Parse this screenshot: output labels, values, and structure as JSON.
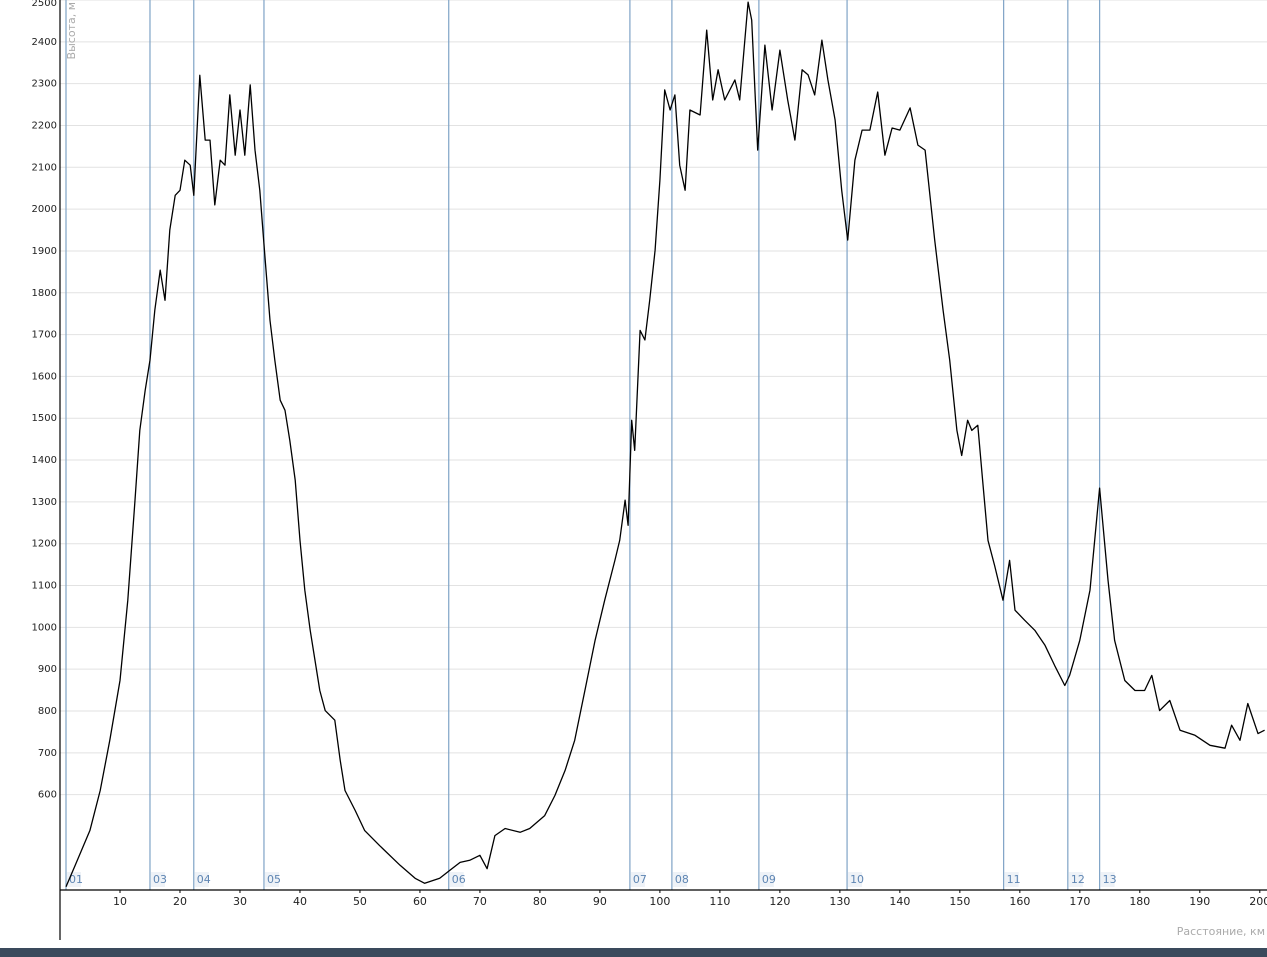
{
  "chart_data": {
    "type": "line",
    "y_label": "Высота, м",
    "x_label": "Расстояние, км",
    "xlim": [
      0,
      201.2
    ],
    "ylim": [
      372,
      2500
    ],
    "xticks": [
      10,
      20,
      30,
      40,
      50,
      60,
      70,
      80,
      90,
      100,
      110,
      120,
      130,
      140,
      150,
      160,
      170,
      180,
      190,
      200
    ],
    "yticks": [
      600,
      700,
      800,
      900,
      1000,
      1100,
      1200,
      1300,
      1400,
      1500,
      1600,
      1700,
      1800,
      1900,
      2000,
      2100,
      2200,
      2300,
      2400,
      2500
    ],
    "grid": true,
    "markers": [
      {
        "label": "01",
        "x": 1
      },
      {
        "label": "03",
        "x": 15
      },
      {
        "label": "04",
        "x": 22.3
      },
      {
        "label": "05",
        "x": 34
      },
      {
        "label": "06",
        "x": 64.8
      },
      {
        "label": "07",
        "x": 95
      },
      {
        "label": "08",
        "x": 102
      },
      {
        "label": "09",
        "x": 116.5
      },
      {
        "label": "10",
        "x": 131.2
      },
      {
        "label": "11",
        "x": 157.3
      },
      {
        "label": "12",
        "x": 168
      },
      {
        "label": "13",
        "x": 173.3
      }
    ],
    "x": [
      1,
      2.5,
      5,
      6.7,
      8.3,
      10,
      11.3,
      12.5,
      13.3,
      14.2,
      15,
      15.8,
      16.7,
      17.5,
      18.3,
      19.2,
      20,
      20.8,
      21.7,
      22.3,
      23.3,
      24.2,
      25,
      25.8,
      26.7,
      27.5,
      28.3,
      29.2,
      30,
      30.8,
      31.7,
      32.5,
      33.3,
      34.2,
      35,
      35.8,
      36.7,
      37.5,
      38.3,
      39.2,
      40,
      40.8,
      41.7,
      42.5,
      43.3,
      44.2,
      45.8,
      46.7,
      47.5,
      49.2,
      50.8,
      53.3,
      56.7,
      59.2,
      60.8,
      63.3,
      65,
      66.7,
      68.3,
      70,
      71.2,
      72.5,
      74.2,
      76.7,
      78.3,
      80.8,
      82.5,
      84.2,
      85.8,
      87.5,
      89.2,
      90.8,
      92.5,
      93.3,
      94.2,
      94.7,
      95.3,
      95.8,
      96.7,
      97.5,
      98.3,
      99.2,
      100,
      100.8,
      101.7,
      102.5,
      103.3,
      104.2,
      105,
      106.7,
      107.8,
      108.8,
      109.7,
      110.8,
      112.5,
      113.3,
      114.7,
      115.3,
      116.3,
      117.5,
      118.7,
      120,
      121.3,
      122.5,
      123.7,
      124.7,
      125.8,
      127,
      128,
      129.2,
      130.3,
      131.3,
      132.5,
      133.7,
      135,
      136.3,
      137.5,
      138.7,
      140,
      141.7,
      143,
      144.2,
      145.8,
      147.2,
      148.3,
      149.5,
      150.3,
      151.3,
      152,
      153,
      153.8,
      154.7,
      155.8,
      157.2,
      158.3,
      159.2,
      160.8,
      162.5,
      164.2,
      165.8,
      167.5,
      168.3,
      170,
      171.7,
      173.3,
      174.7,
      175.8,
      177.5,
      179.2,
      180.8,
      182,
      183.3,
      185,
      186.7,
      189.2,
      191.7,
      194.2,
      195.3,
      196.7,
      198,
      199.7,
      200.8
    ],
    "series": [
      {
        "color": "#000000",
        "values": [
          380,
          430,
          515,
          610,
          730,
          873,
          1065,
          1304,
          1471,
          1567,
          1639,
          1758,
          1854,
          1782,
          1950,
          2033,
          2045,
          2117,
          2105,
          2033,
          2320,
          2165,
          2165,
          2010,
          2117,
          2105,
          2273,
          2129,
          2237,
          2129,
          2297,
          2141,
          2045,
          1878,
          1734,
          1639,
          1543,
          1519,
          1447,
          1352,
          1208,
          1089,
          993,
          921,
          849,
          801,
          778,
          682,
          610,
          562,
          514,
          478,
          431,
          400,
          388,
          400,
          419,
          438,
          443,
          455,
          423,
          502,
          519,
          510,
          519,
          550,
          598,
          658,
          730,
          849,
          969,
          1065,
          1160,
          1208,
          1304,
          1244,
          1495,
          1423,
          1710,
          1687,
          1782,
          1902,
          2069,
          2285,
          2237,
          2273,
          2105,
          2045,
          2237,
          2225,
          2428,
          2261,
          2333,
          2261,
          2309,
          2261,
          2495,
          2452,
          2141,
          2392,
          2237,
          2380,
          2261,
          2165,
          2333,
          2321,
          2273,
          2404,
          2309,
          2213,
          2045,
          1926,
          2117,
          2189,
          2189,
          2280,
          2129,
          2194,
          2189,
          2242,
          2153,
          2141,
          1926,
          1758,
          1639,
          1471,
          1411,
          1495,
          1471,
          1483,
          1352,
          1208,
          1148,
          1065,
          1160,
          1041,
          1017,
          993,
          957,
          909,
          861,
          885,
          969,
          1089,
          1333,
          1113,
          969,
          873,
          849,
          849,
          885,
          801,
          825,
          754,
          742,
          718,
          711,
          766,
          730,
          818,
          746,
          754
        ]
      }
    ]
  }
}
